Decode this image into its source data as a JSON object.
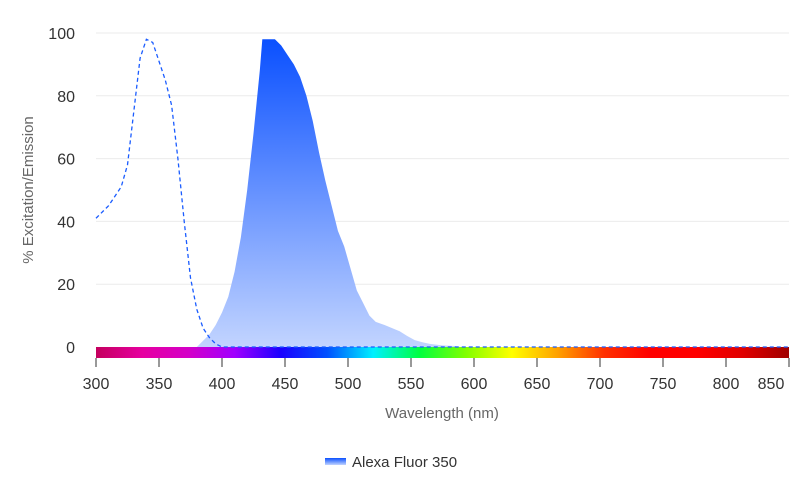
{
  "chart_data": {
    "type": "area",
    "xlabel": "Wavelength (nm)",
    "ylabel": "% Excitation/Emission",
    "xlim": [
      300,
      850
    ],
    "ylim": [
      0,
      100
    ],
    "xticks": [
      300,
      350,
      400,
      450,
      500,
      550,
      600,
      650,
      700,
      750,
      800,
      850
    ],
    "yticks": [
      0,
      20,
      40,
      60,
      80,
      100
    ],
    "grid": true,
    "legend_position": "bottom",
    "legend": [
      "Alexa Fluor 350"
    ],
    "series": [
      {
        "name": "Alexa Fluor 350",
        "role": "excitation",
        "style": "dashed",
        "color": "#1a5cff",
        "x": [
          300,
          310,
          320,
          325,
          330,
          335,
          340,
          345,
          350,
          355,
          360,
          365,
          370,
          375,
          380,
          385,
          390,
          395,
          400,
          850
        ],
        "y": [
          41,
          45,
          51,
          58,
          75,
          92,
          98,
          97,
          91,
          85,
          77,
          60,
          40,
          22,
          12,
          6,
          3,
          1,
          0,
          0
        ]
      },
      {
        "name": "Alexa Fluor 350",
        "role": "emission",
        "style": "filled",
        "color": "#0a50ff",
        "x": [
          380,
          385,
          390,
          395,
          400,
          405,
          410,
          415,
          420,
          425,
          430,
          432,
          442,
          447,
          452,
          457,
          462,
          467,
          472,
          477,
          482,
          487,
          492,
          497,
          502,
          507,
          512,
          517,
          522,
          529,
          535,
          541,
          547,
          553,
          559,
          565,
          575,
          585,
          590,
          850
        ],
        "y": [
          0,
          2,
          4,
          7,
          11,
          16,
          24,
          35,
          50,
          68,
          88,
          98,
          98,
          96,
          93,
          90,
          86,
          80,
          72,
          62,
          53,
          45,
          37,
          32,
          25,
          18,
          14,
          10,
          8,
          7,
          6,
          5,
          3.5,
          2.2,
          1.5,
          1,
          0.5,
          0.3,
          0,
          0
        ]
      }
    ],
    "spectrum_colors": [
      "#c4005e",
      "#e600a0",
      "#d400c8",
      "#a000ff",
      "#1a00ff",
      "#0050ff",
      "#00f0ff",
      "#00ff40",
      "#80ff00",
      "#ffff00",
      "#ffa000",
      "#ff3000",
      "#ff0000",
      "#ff0000",
      "#e00000",
      "#a00000"
    ]
  }
}
